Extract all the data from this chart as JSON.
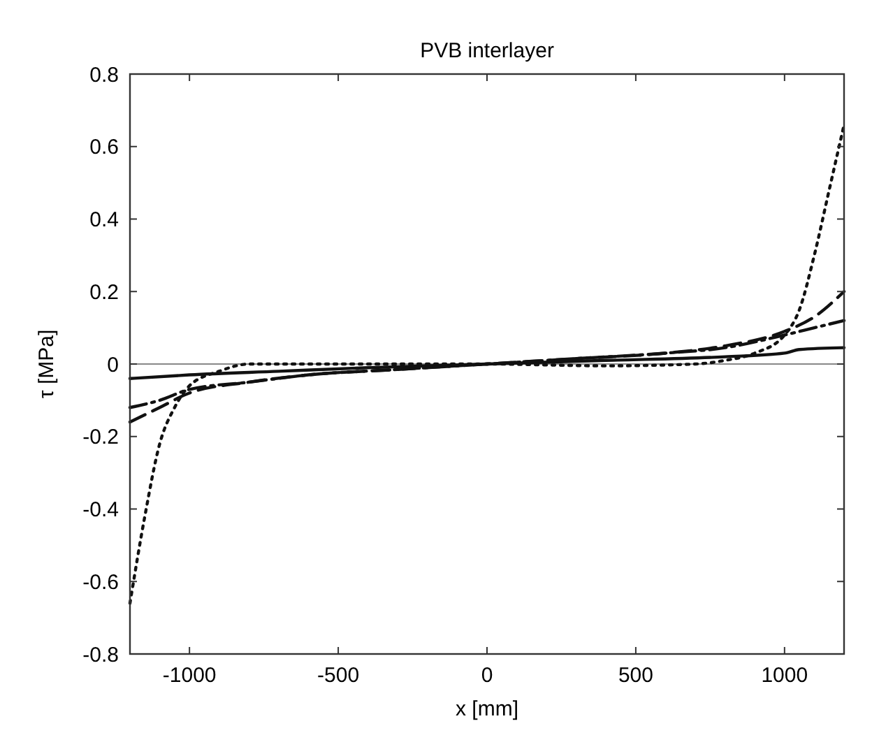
{
  "chart_data": {
    "type": "line",
    "title": "PVB interlayer",
    "xlabel": "x [mm]",
    "ylabel": "τ [MPa]",
    "xlim": [
      -1200,
      1200
    ],
    "xticks": [
      -1000,
      -500,
      0,
      500,
      1000
    ],
    "ylim": [
      -0.8,
      0.8
    ],
    "yticks": [
      -0.8,
      -0.6,
      -0.4,
      -0.2,
      0,
      0.2,
      0.4,
      0.6,
      0.8
    ],
    "grid": false,
    "marker": "none",
    "ref_lines": [
      {
        "axis": "y",
        "value": 0,
        "color": "#888888"
      }
    ],
    "series": [
      {
        "color": "#111111",
        "line_style": "solid",
        "x": [
          -1200,
          -1000,
          -700,
          -400,
          0,
          400,
          800,
          1000,
          1050,
          1200
        ],
        "values": [
          -0.04,
          -0.03,
          -0.02,
          -0.01,
          0,
          0.01,
          0.02,
          0.03,
          0.04,
          0.045
        ]
      },
      {
        "color": "#111111",
        "line_style": "dashed",
        "x": [
          -1200,
          -1100,
          -1000,
          -800,
          -600,
          -300,
          0,
          300,
          600,
          800,
          1000,
          1100,
          1200
        ],
        "values": [
          -0.16,
          -0.12,
          -0.08,
          -0.05,
          -0.03,
          -0.015,
          0,
          0.015,
          0.03,
          0.05,
          0.09,
          0.13,
          0.2
        ]
      },
      {
        "color": "#111111",
        "line_style": "dashdot",
        "x": [
          -1200,
          -1100,
          -1000,
          -800,
          -600,
          -300,
          0,
          300,
          600,
          800,
          1000,
          1100,
          1200
        ],
        "values": [
          -0.12,
          -0.1,
          -0.07,
          -0.05,
          -0.03,
          -0.015,
          0,
          0.015,
          0.03,
          0.045,
          0.08,
          0.1,
          0.12
        ]
      },
      {
        "color": "#111111",
        "line_style": "dotted",
        "x": [
          -1200,
          -1150,
          -1100,
          -1050,
          -1000,
          -900,
          -800,
          -400,
          0,
          400,
          700,
          800,
          900,
          1000,
          1050,
          1100,
          1150,
          1200
        ],
        "values": [
          -0.66,
          -0.42,
          -0.22,
          -0.12,
          -0.06,
          -0.02,
          0,
          0,
          0,
          -0.005,
          0,
          0.01,
          0.03,
          0.08,
          0.15,
          0.3,
          0.48,
          0.66
        ]
      }
    ]
  }
}
